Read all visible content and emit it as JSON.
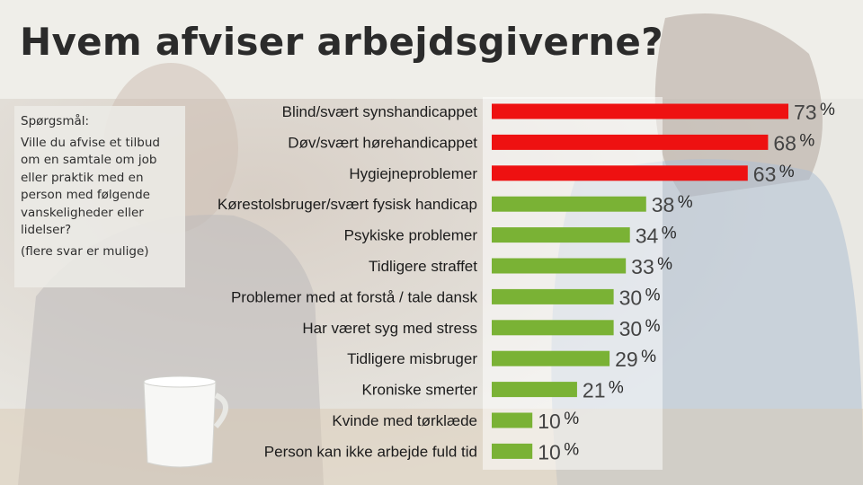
{
  "title": "Hvem afviser arbejdsgiverne?",
  "question": {
    "heading": "Spørgsmål:",
    "text": "Ville du afvise et tilbud om en samtale om job eller praktik med en person med følgende vanskeligheder eller lidelser?",
    "note": "(flere svar er mulige)"
  },
  "colors": {
    "high": "#ee1111",
    "low": "#7ab235"
  },
  "chart_data": {
    "type": "bar",
    "orientation": "horizontal",
    "title": "Hvem afviser arbejdsgiverne?",
    "unit": "%",
    "categories": [
      "Blind/svært synshandicappet",
      "Døv/svært hørehandicappet",
      "Hygiejneproblemer",
      "Kørestolsbruger/svært fysisk handicap",
      "Psykiske problemer",
      "Tidligere straffet",
      "Problemer med at forstå / tale dansk",
      "Har været syg med stress",
      "Tidligere misbruger",
      "Kroniske smerter",
      "Kvinde med tørklæde",
      "Person kan ikke arbejde fuld tid"
    ],
    "values": [
      73,
      68,
      63,
      38,
      34,
      33,
      30,
      30,
      29,
      21,
      10,
      10
    ],
    "highlight": [
      true,
      true,
      true,
      false,
      false,
      false,
      false,
      false,
      false,
      false,
      false,
      false
    ],
    "xlim": [
      0,
      100
    ]
  }
}
